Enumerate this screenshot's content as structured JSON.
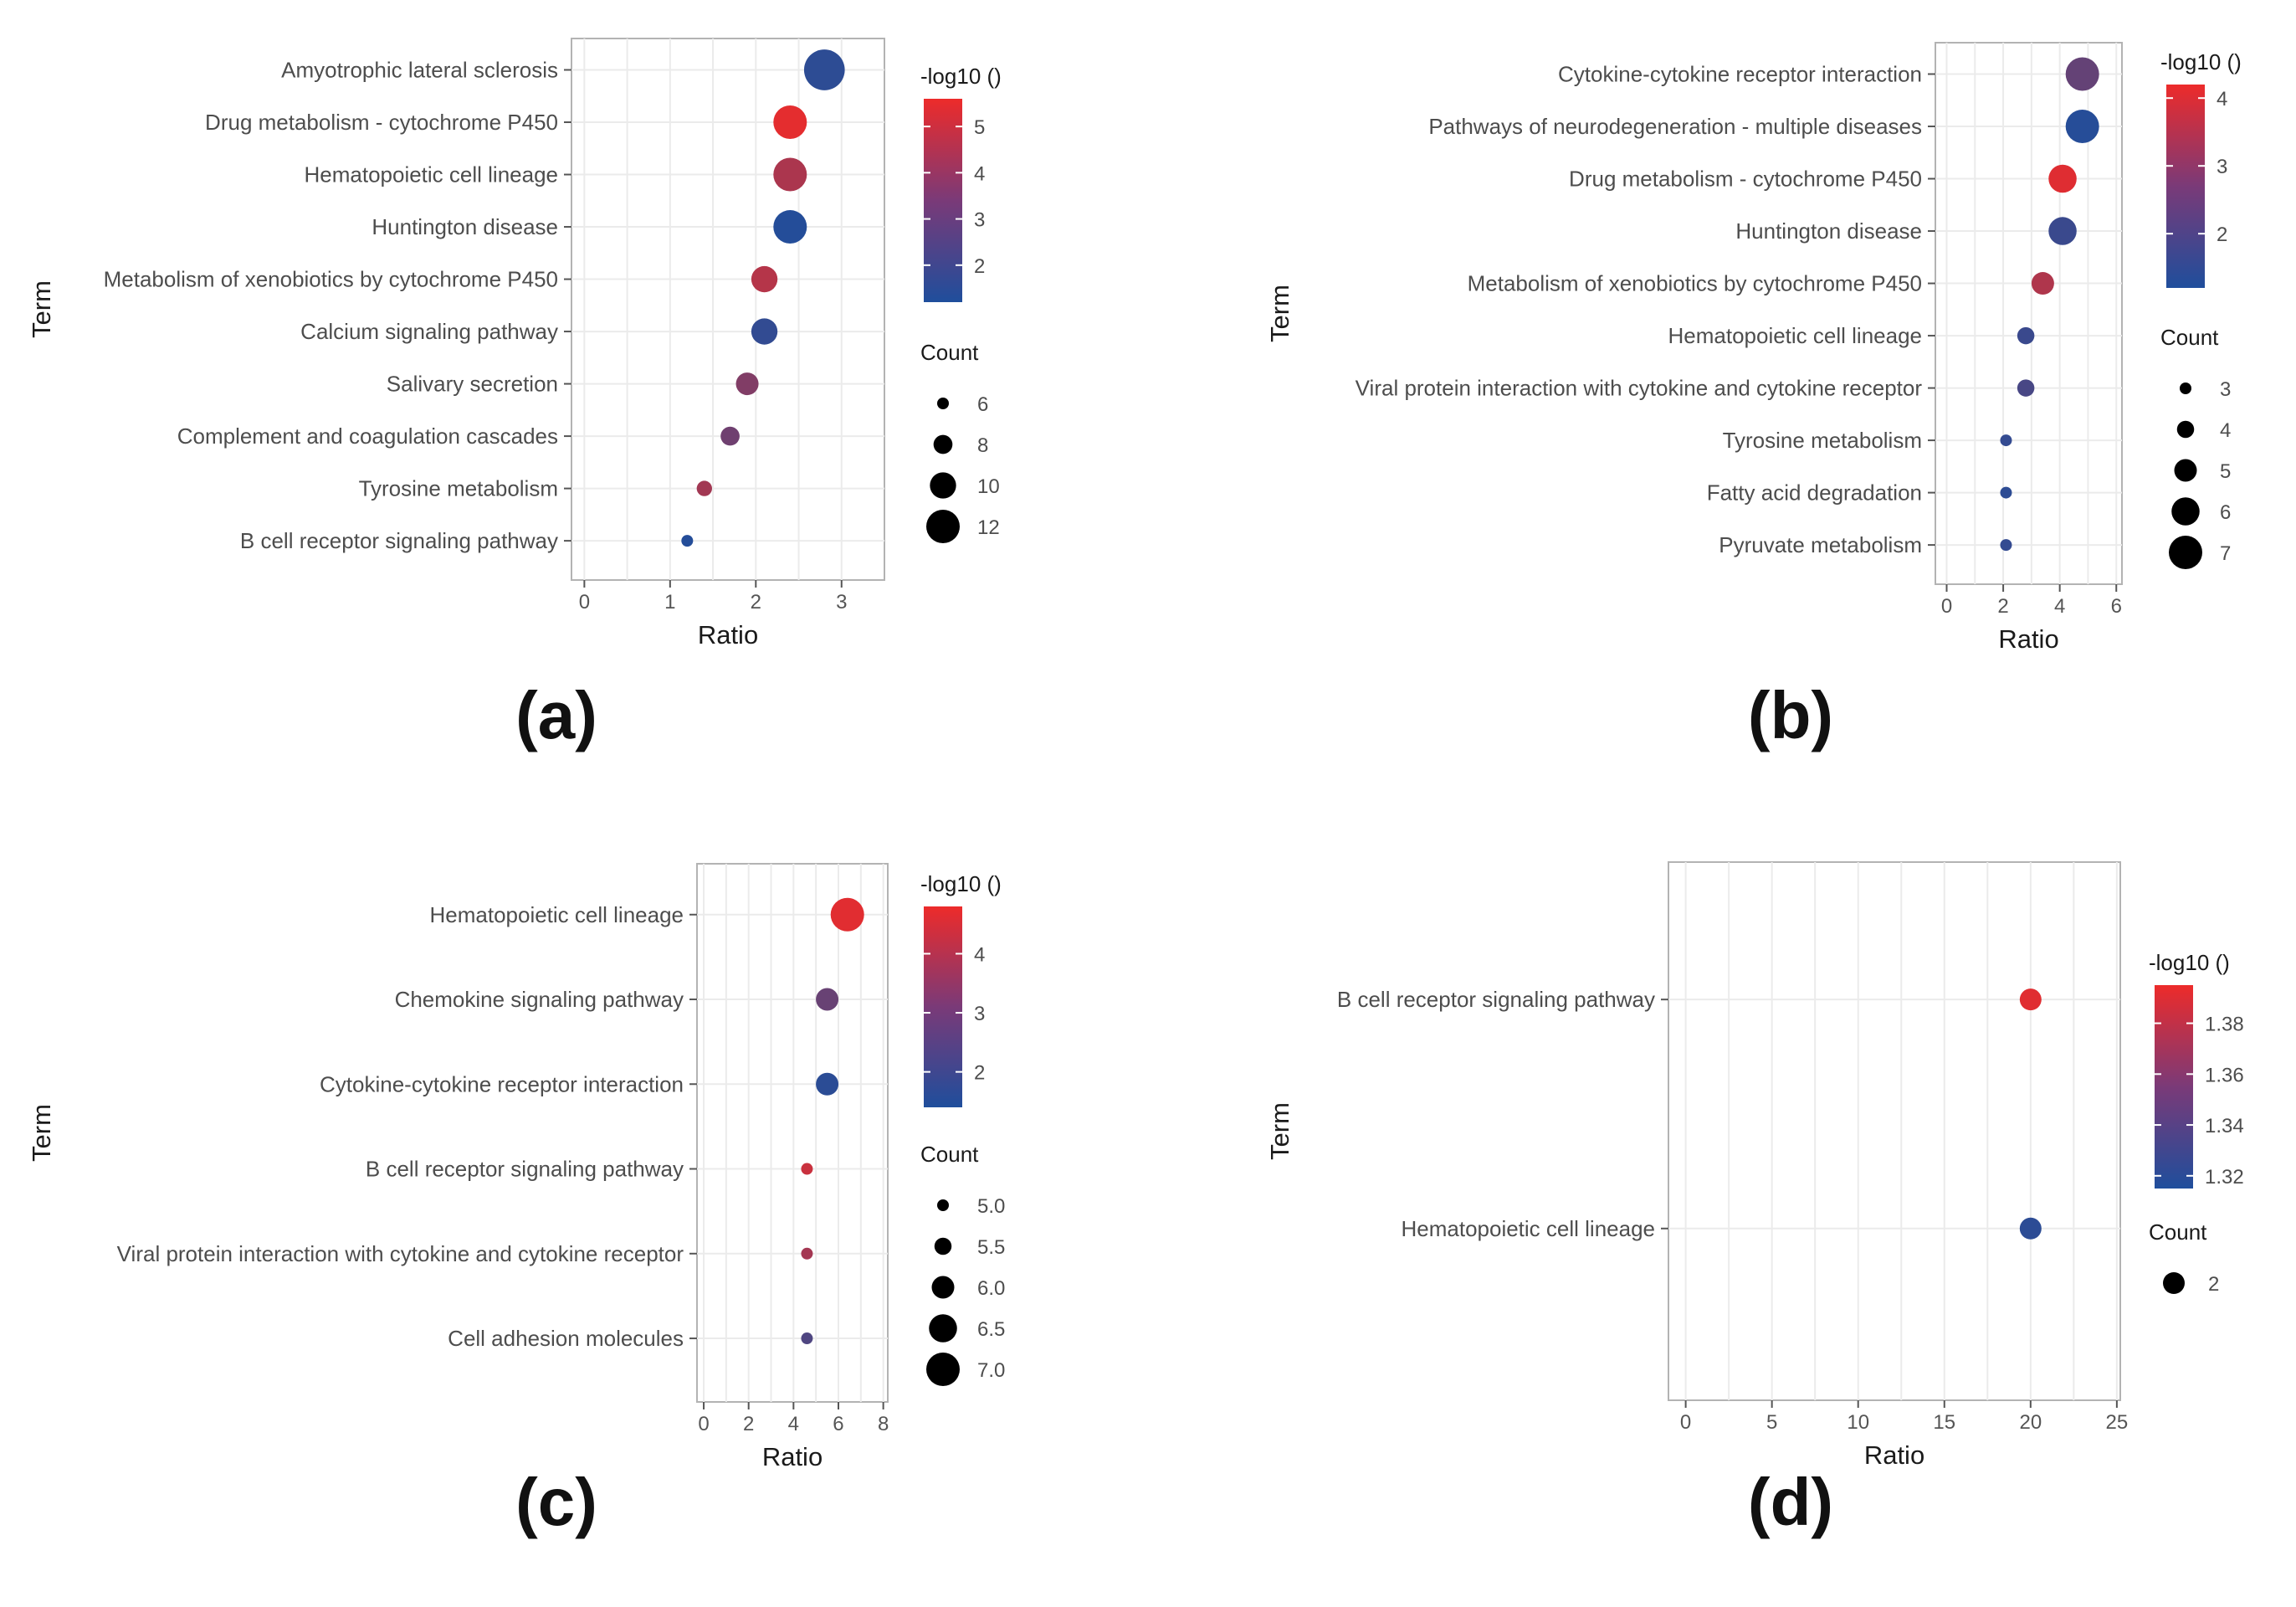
{
  "figure": {
    "axis_title_y": "Term",
    "axis_title_x": "Ratio",
    "colorbar_title": "-log10 ()",
    "count_title": "Count",
    "color_low": "#1f4e9c",
    "color_high": "#ed2b2a"
  },
  "chart_data": [
    {
      "type": "scatter",
      "panel_label": "(a)",
      "xlabel": "Ratio",
      "ylabel": "Term",
      "xlim": [
        -0.15,
        3.5
      ],
      "xticks": [
        0,
        1,
        2,
        3
      ],
      "grid": true,
      "terms": [
        "Amyotrophic lateral sclerosis",
        "Drug metabolism - cytochrome P450",
        "Hematopoietic cell lineage",
        "Huntington disease",
        "Metabolism of xenobiotics by cytochrome P450",
        "Calcium signaling pathway",
        "Salivary secretion",
        "Complement and coagulation cascades",
        "Tyrosine metabolism",
        "B cell receptor signaling pathway"
      ],
      "ratio": [
        2.8,
        2.4,
        2.4,
        2.4,
        2.1,
        2.1,
        1.9,
        1.7,
        1.4,
        1.2
      ],
      "count": [
        14,
        12,
        12,
        12,
        10,
        10,
        9,
        8,
        7,
        6
      ],
      "neg_log10": [
        1.5,
        5.4,
        4.2,
        1.3,
        4.4,
        1.6,
        3.3,
        2.9,
        4.0,
        1.3
      ],
      "colorbar": {
        "min": 1.2,
        "max": 5.6,
        "ticks": [
          2,
          3,
          4,
          5
        ],
        "tick_labels": [
          "2",
          "3",
          "4",
          "5"
        ]
      },
      "size_legend": {
        "values": [
          6,
          8,
          10,
          12
        ],
        "labels": [
          "6",
          "8",
          "10",
          "12"
        ]
      }
    },
    {
      "type": "scatter",
      "panel_label": "(b)",
      "xlabel": "Ratio",
      "ylabel": "Term",
      "xlim": [
        -0.4,
        6.2
      ],
      "xticks": [
        0,
        2,
        4,
        6
      ],
      "grid": true,
      "terms": [
        "Cytokine-cytokine receptor interaction",
        "Pathways of neurodegeneration - multiple diseases",
        "Drug metabolism - cytochrome P450",
        "Huntington disease",
        "Metabolism of xenobiotics by cytochrome P450",
        "Hematopoietic cell lineage",
        "Viral protein interaction with cytokine and cytokine receptor",
        "Tyrosine metabolism",
        "Fatty acid degradation",
        "Pyruvate metabolism"
      ],
      "ratio": [
        4.8,
        4.8,
        4.1,
        4.1,
        3.4,
        2.8,
        2.8,
        2.1,
        2.1,
        2.1
      ],
      "count": [
        7,
        7,
        6,
        6,
        5,
        4,
        4,
        3,
        3,
        3
      ],
      "neg_log10": [
        2.2,
        1.3,
        4.0,
        1.6,
        3.3,
        1.6,
        1.8,
        1.5,
        1.4,
        1.5
      ],
      "colorbar": {
        "min": 1.2,
        "max": 4.2,
        "ticks": [
          2,
          3,
          4
        ],
        "tick_labels": [
          "2",
          "3",
          "4"
        ]
      },
      "size_legend": {
        "values": [
          3,
          4,
          5,
          6,
          7
        ],
        "labels": [
          "3",
          "4",
          "5",
          "6",
          "7"
        ]
      }
    },
    {
      "type": "scatter",
      "panel_label": "(c)",
      "xlabel": "Ratio",
      "ylabel": "Term",
      "xlim": [
        -0.3,
        8.2
      ],
      "xticks": [
        0,
        2,
        4,
        6,
        8
      ],
      "grid": true,
      "terms": [
        "Hematopoietic cell lineage",
        "Chemokine signaling pathway",
        "Cytokine-cytokine receptor interaction",
        "B cell receptor signaling pathway",
        "Viral protein interaction with cytokine and cytokine receptor",
        "Cell adhesion molecules"
      ],
      "ratio": [
        6.4,
        5.5,
        5.5,
        4.6,
        4.6,
        4.6
      ],
      "count": [
        7,
        6,
        6,
        5,
        5,
        5
      ],
      "neg_log10": [
        4.6,
        2.6,
        1.6,
        4.2,
        3.6,
        2.2
      ],
      "colorbar": {
        "min": 1.4,
        "max": 4.8,
        "ticks": [
          2,
          3,
          4
        ],
        "tick_labels": [
          "2",
          "3",
          "4"
        ]
      },
      "size_legend": {
        "values": [
          5.0,
          5.5,
          6.0,
          6.5,
          7.0
        ],
        "labels": [
          "5.0",
          "5.5",
          "6.0",
          "6.5",
          "7.0"
        ]
      }
    },
    {
      "type": "scatter",
      "panel_label": "(d)",
      "xlabel": "Ratio",
      "ylabel": "Term",
      "xlim": [
        -1,
        25.2
      ],
      "xticks": [
        0,
        5,
        10,
        15,
        20,
        25
      ],
      "grid": true,
      "terms": [
        "B cell receptor signaling pathway",
        "Hematopoietic cell lineage"
      ],
      "ratio": [
        20,
        20
      ],
      "count": [
        2,
        2
      ],
      "neg_log10": [
        1.39,
        1.32
      ],
      "colorbar": {
        "min": 1.315,
        "max": 1.395,
        "ticks": [
          1.32,
          1.34,
          1.36,
          1.38
        ],
        "tick_labels": [
          "1.32",
          "1.34",
          "1.36",
          "1.38"
        ]
      },
      "size_legend": {
        "values": [
          2
        ],
        "labels": [
          "2"
        ]
      }
    }
  ]
}
